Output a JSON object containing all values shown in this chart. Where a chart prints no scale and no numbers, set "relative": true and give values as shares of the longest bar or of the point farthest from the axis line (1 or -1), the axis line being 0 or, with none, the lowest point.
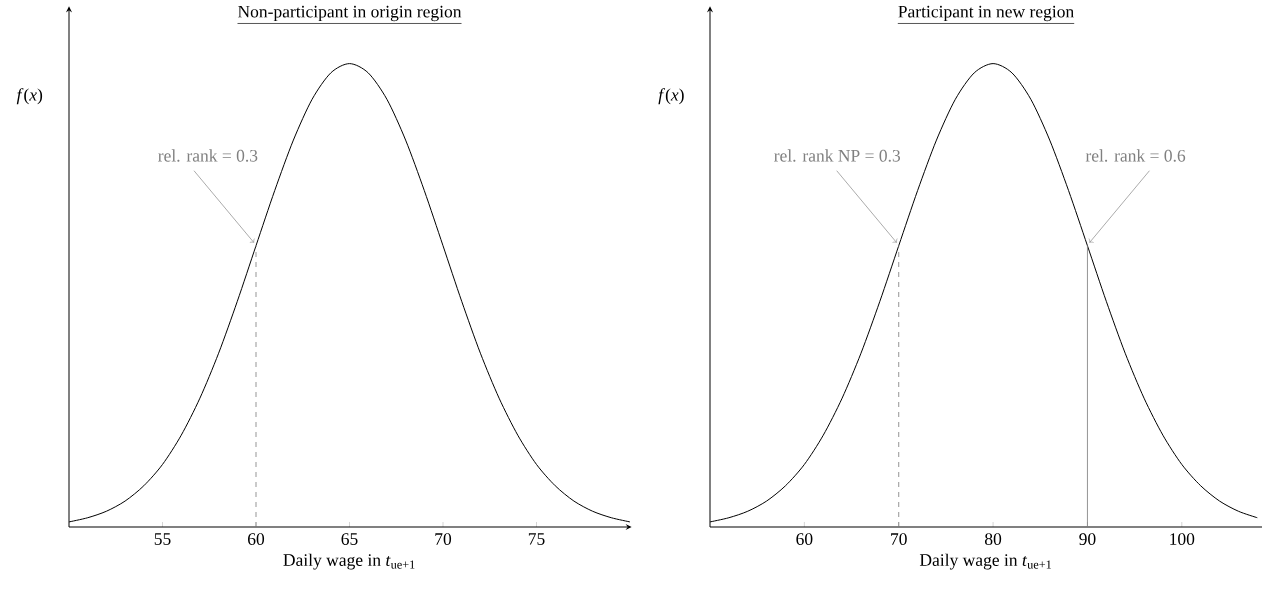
{
  "chart_data": [
    {
      "type": "line",
      "title": "Non-participant in origin region",
      "xlabel": "Daily wage in *t*$_{ue+1}$",
      "ylabel": "*f*(*x*)",
      "relative": true,
      "tick_labels": "x",
      "xlim": [
        50,
        80
      ],
      "xticks": [
        55,
        60,
        65,
        70,
        75
      ],
      "series": [
        {
          "color": "#000000",
          "x": [
            50,
            51,
            52,
            53,
            54,
            55,
            56,
            57,
            58,
            59,
            60,
            61,
            62,
            63,
            64,
            65,
            66,
            67,
            68,
            69,
            70,
            71,
            72,
            73,
            74,
            75,
            76,
            77,
            78,
            79,
            80
          ],
          "values": [
            0.011,
            0.02,
            0.034,
            0.056,
            0.089,
            0.135,
            0.198,
            0.278,
            0.375,
            0.487,
            0.607,
            0.726,
            0.835,
            0.923,
            0.98,
            1,
            0.98,
            0.923,
            0.835,
            0.726,
            0.607,
            0.487,
            0.375,
            0.278,
            0.198,
            0.135,
            0.089,
            0.056,
            0.034,
            0.02,
            0.011
          ]
        }
      ],
      "ref_lines": [
        {
          "axis": "x",
          "value": 60,
          "color": "#808080",
          "line_style": "dashed"
        }
      ],
      "annotations": [
        {
          "text": "rel. rank = 0.3",
          "x": 60,
          "y": 0.607
        }
      ]
    },
    {
      "type": "line",
      "title": "Participant in new region",
      "xlabel": "Daily wage in *t*$_{ue+1}$",
      "ylabel": "*f*(*x*)",
      "relative": true,
      "tick_labels": "x",
      "xlim": [
        50,
        108.5
      ],
      "xticks": [
        60,
        70,
        80,
        90,
        100
      ],
      "series": [
        {
          "color": "#000000",
          "x": [
            50,
            52,
            54,
            56,
            58,
            60,
            62,
            64,
            66,
            68,
            70,
            72,
            74,
            76,
            78,
            80,
            82,
            84,
            86,
            88,
            90,
            92,
            94,
            96,
            98,
            100,
            102,
            104,
            106,
            108
          ],
          "values": [
            0.011,
            0.02,
            0.034,
            0.056,
            0.089,
            0.135,
            0.198,
            0.278,
            0.375,
            0.487,
            0.607,
            0.726,
            0.835,
            0.923,
            0.98,
            1,
            0.98,
            0.923,
            0.835,
            0.726,
            0.607,
            0.487,
            0.375,
            0.278,
            0.198,
            0.135,
            0.089,
            0.056,
            0.034,
            0.02
          ]
        }
      ],
      "ref_lines": [
        {
          "axis": "x",
          "value": 70,
          "color": "#808080",
          "line_style": "dashed"
        },
        {
          "axis": "x",
          "value": 90,
          "color": "#808080",
          "line_style": "solid"
        }
      ],
      "annotations": [
        {
          "text": "rel. rank NP = 0.3",
          "x": 70,
          "y": 0.607
        },
        {
          "text": "rel. rank = 0.6",
          "x": 90,
          "y": 0.607
        }
      ]
    }
  ]
}
